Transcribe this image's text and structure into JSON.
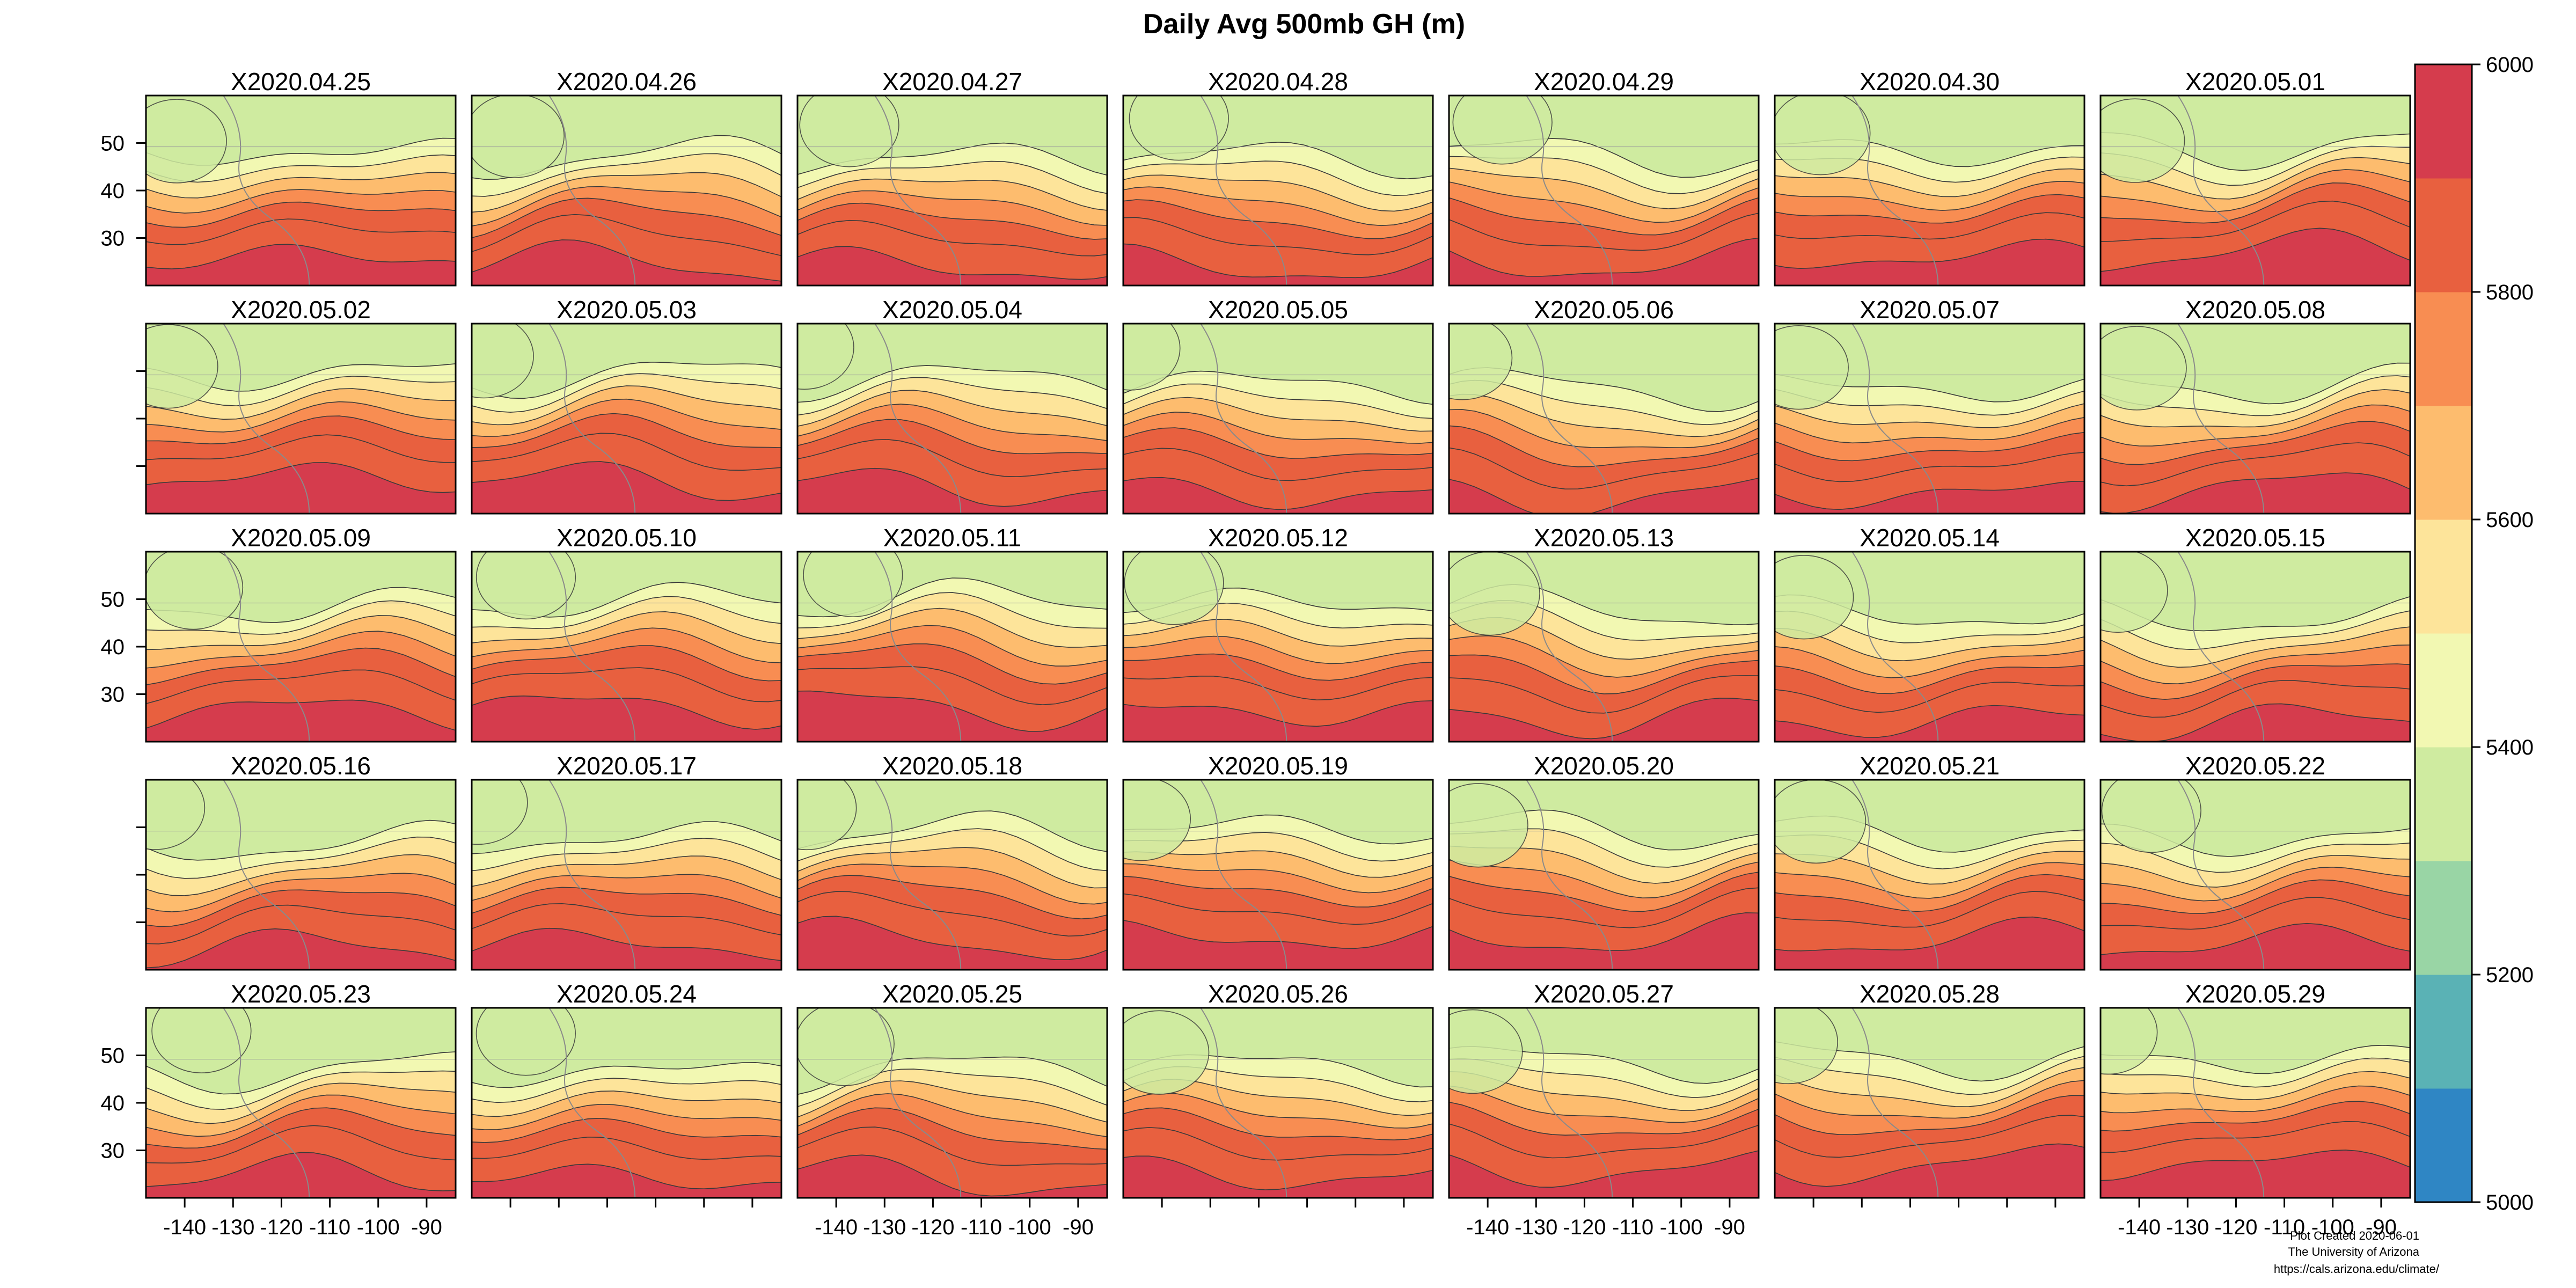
{
  "chart_data": {
    "type": "heatmap",
    "title": "Daily Avg 500mb GH (m)",
    "panels": [
      "X2020.04.25",
      "X2020.04.26",
      "X2020.04.27",
      "X2020.04.28",
      "X2020.04.29",
      "X2020.04.30",
      "X2020.05.01",
      "X2020.05.02",
      "X2020.05.03",
      "X2020.05.04",
      "X2020.05.05",
      "X2020.05.06",
      "X2020.05.07",
      "X2020.05.08",
      "X2020.05.09",
      "X2020.05.10",
      "X2020.05.11",
      "X2020.05.12",
      "X2020.05.13",
      "X2020.05.14",
      "X2020.05.15",
      "X2020.05.16",
      "X2020.05.17",
      "X2020.05.18",
      "X2020.05.19",
      "X2020.05.20",
      "X2020.05.21",
      "X2020.05.22",
      "X2020.05.23",
      "X2020.05.24",
      "X2020.05.25",
      "X2020.05.26",
      "X2020.05.27",
      "X2020.05.28",
      "X2020.05.29"
    ],
    "layout": {
      "rows": 5,
      "cols": 7
    },
    "x_ticks": [
      "-140",
      "-130",
      "-120",
      "-110",
      "-100",
      "-90"
    ],
    "x_tick_values": [
      -140,
      -130,
      -120,
      -110,
      -100,
      -90
    ],
    "y_ticks": [
      "30",
      "40",
      "50"
    ],
    "y_tick_values": [
      30,
      40,
      50
    ],
    "xlim": [
      -148,
      -84
    ],
    "ylim": [
      20,
      60
    ],
    "colorbar": {
      "range": [
        5000,
        6000
      ],
      "tick_labels": [
        "5000",
        "5200",
        "5400",
        "5600",
        "5800",
        "6000"
      ],
      "tick_values": [
        5000,
        5200,
        5400,
        5600,
        5800,
        6000
      ],
      "colors": [
        "#2f86c4",
        "#5ab2b5",
        "#99d5a5",
        "#cfeba0",
        "#f2f8b2",
        "#fde49a",
        "#fdbc6e",
        "#f88d52",
        "#e8603f",
        "#d53c4d"
      ]
    },
    "grid": false,
    "legend_position": "right",
    "credit": {
      "line1": "Plot Created 2020-06-01",
      "line2": "The University of Arizona",
      "line3": "https://cals.arizona.edu/climate/"
    }
  }
}
